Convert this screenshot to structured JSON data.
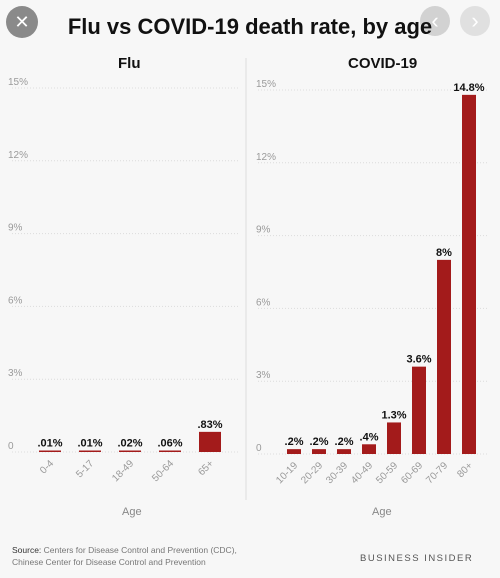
{
  "chrome": {
    "close_icon": "close-icon",
    "prev_icon": "chevron-left-icon",
    "next_icon": "chevron-right-icon"
  },
  "chart_title": "Flu vs COVID-19 death rate, by age",
  "source_label": "Source:",
  "source_line1": "Centers for Disease Control and Prevention (CDC),",
  "source_line2": "Chinese Center for Disease Control and Prevention",
  "brand": "BUSINESS INSIDER",
  "colors": {
    "bar": "#a31b1b",
    "grid": "#dcdcdc",
    "tick": "#9a9a9a"
  },
  "chart_data": [
    {
      "type": "bar",
      "title": "Flu",
      "xlabel": "Age",
      "ylabel": "",
      "ylim": [
        0,
        15
      ],
      "yticks": [
        "0",
        "3%",
        "6%",
        "9%",
        "12%",
        "15%"
      ],
      "categories": [
        "0-4",
        "5-17",
        "18-49",
        "50-64",
        "65+"
      ],
      "values": [
        0.01,
        0.01,
        0.02,
        0.06,
        0.83
      ],
      "data_labels": [
        ".01%",
        ".01%",
        ".02%",
        ".06%",
        ".83%"
      ]
    },
    {
      "type": "bar",
      "title": "COVID-19",
      "xlabel": "Age",
      "ylabel": "",
      "ylim": [
        0,
        15
      ],
      "yticks": [
        "0",
        "3%",
        "6%",
        "9%",
        "12%",
        "15%"
      ],
      "categories": [
        "10-19",
        "20-29",
        "30-39",
        "40-49",
        "50-59",
        "60-69",
        "70-79",
        "80+"
      ],
      "values": [
        0.2,
        0.2,
        0.2,
        0.4,
        1.3,
        3.6,
        8,
        14.8
      ],
      "data_labels": [
        ".2%",
        ".2%",
        ".2%",
        ".4%",
        "1.3%",
        "3.6%",
        "8%",
        "14.8%"
      ]
    }
  ]
}
